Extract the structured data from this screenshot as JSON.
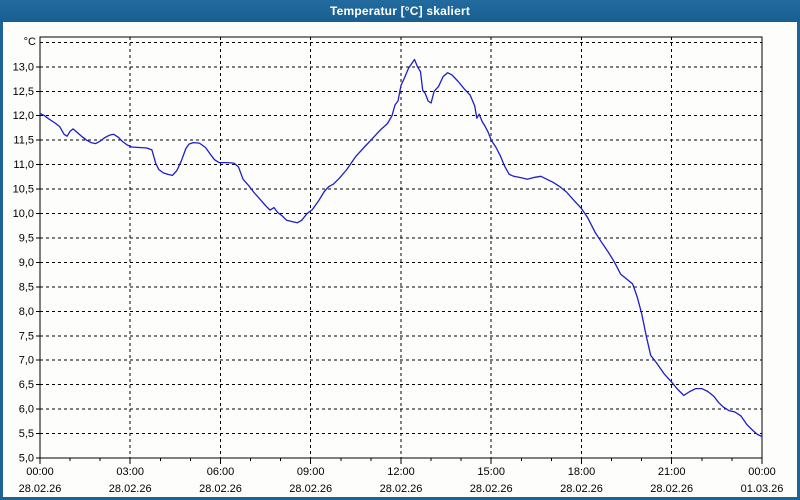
{
  "window": {
    "title": "Temperatur [°C] skaliert"
  },
  "colors": {
    "titlebar": "#1c6496",
    "window_frame": "#1c6496",
    "title_text": "#ffffff",
    "plot_background": "#fdfefb",
    "grid": "#000000",
    "line": "#1e1ec8"
  },
  "chart_data": {
    "type": "line",
    "title": "Temperatur [°C] skaliert",
    "y_unit_label": "°C",
    "xlabel": "",
    "ylabel": "",
    "grid": "dashed",
    "x_min_hours": 0,
    "x_max_hours": 24,
    "y_axis_min": 5.0,
    "y_axis_max_labeled": 13.0,
    "y_gridline_max": 13.5,
    "y_tick_step": 0.5,
    "x_major_step_hours": 3,
    "x_minor_step_hours": 1,
    "y_ticks": [
      {
        "value": 13.0,
        "label": "13,0"
      },
      {
        "value": 12.5,
        "label": "12,5"
      },
      {
        "value": 12.0,
        "label": "12,0"
      },
      {
        "value": 11.5,
        "label": "11,5"
      },
      {
        "value": 11.0,
        "label": "11,0"
      },
      {
        "value": 10.5,
        "label": "10,5"
      },
      {
        "value": 10.0,
        "label": "10,0"
      },
      {
        "value": 9.5,
        "label": "9,5"
      },
      {
        "value": 9.0,
        "label": "9,0"
      },
      {
        "value": 8.5,
        "label": "8,5"
      },
      {
        "value": 8.0,
        "label": "8,0"
      },
      {
        "value": 7.5,
        "label": "7,5"
      },
      {
        "value": 7.0,
        "label": "7,0"
      },
      {
        "value": 6.5,
        "label": "6,5"
      },
      {
        "value": 6.0,
        "label": "6,0"
      },
      {
        "value": 5.5,
        "label": "5,5"
      },
      {
        "value": 5.0,
        "label": "5,0"
      }
    ],
    "x_ticks": [
      {
        "hours": 0,
        "time": "00:00",
        "date": "28.02.26"
      },
      {
        "hours": 3,
        "time": "03:00",
        "date": "28.02.26"
      },
      {
        "hours": 6,
        "time": "06:00",
        "date": "28.02.26"
      },
      {
        "hours": 9,
        "time": "09:00",
        "date": "28.02.26"
      },
      {
        "hours": 12,
        "time": "12:00",
        "date": "28.02.26"
      },
      {
        "hours": 15,
        "time": "15:00",
        "date": "28.02.26"
      },
      {
        "hours": 18,
        "time": "18:00",
        "date": "28.02.26"
      },
      {
        "hours": 21,
        "time": "21:00",
        "date": "28.02.26"
      },
      {
        "hours": 24,
        "time": "00:00",
        "date": "01.03.26"
      }
    ],
    "series": [
      {
        "name": "Temperatur",
        "color": "#1e1ec8",
        "points_hours_degC": [
          [
            0.0,
            12.05
          ],
          [
            0.15,
            12.0
          ],
          [
            0.3,
            11.93
          ],
          [
            0.5,
            11.85
          ],
          [
            0.65,
            11.78
          ],
          [
            0.8,
            11.62
          ],
          [
            0.9,
            11.58
          ],
          [
            1.0,
            11.68
          ],
          [
            1.1,
            11.73
          ],
          [
            1.25,
            11.65
          ],
          [
            1.4,
            11.57
          ],
          [
            1.55,
            11.5
          ],
          [
            1.7,
            11.45
          ],
          [
            1.85,
            11.43
          ],
          [
            2.0,
            11.48
          ],
          [
            2.15,
            11.55
          ],
          [
            2.3,
            11.6
          ],
          [
            2.45,
            11.62
          ],
          [
            2.6,
            11.56
          ],
          [
            2.75,
            11.47
          ],
          [
            2.9,
            11.4
          ],
          [
            3.05,
            11.36
          ],
          [
            3.3,
            11.35
          ],
          [
            3.55,
            11.34
          ],
          [
            3.72,
            11.3
          ],
          [
            3.85,
            11.02
          ],
          [
            3.95,
            10.9
          ],
          [
            4.1,
            10.83
          ],
          [
            4.25,
            10.8
          ],
          [
            4.4,
            10.78
          ],
          [
            4.55,
            10.88
          ],
          [
            4.7,
            11.08
          ],
          [
            4.85,
            11.33
          ],
          [
            4.95,
            11.42
          ],
          [
            5.1,
            11.45
          ],
          [
            5.3,
            11.44
          ],
          [
            5.5,
            11.35
          ],
          [
            5.65,
            11.22
          ],
          [
            5.8,
            11.1
          ],
          [
            5.95,
            11.04
          ],
          [
            6.2,
            11.04
          ],
          [
            6.45,
            11.03
          ],
          [
            6.6,
            10.95
          ],
          [
            6.75,
            10.7
          ],
          [
            6.95,
            10.56
          ],
          [
            7.1,
            10.44
          ],
          [
            7.3,
            10.3
          ],
          [
            7.5,
            10.16
          ],
          [
            7.65,
            10.07
          ],
          [
            7.78,
            10.12
          ],
          [
            7.9,
            10.02
          ],
          [
            8.05,
            9.95
          ],
          [
            8.2,
            9.86
          ],
          [
            8.4,
            9.83
          ],
          [
            8.55,
            9.81
          ],
          [
            8.7,
            9.86
          ],
          [
            8.88,
            10.0
          ],
          [
            9.05,
            10.08
          ],
          [
            9.25,
            10.25
          ],
          [
            9.45,
            10.45
          ],
          [
            9.6,
            10.55
          ],
          [
            9.75,
            10.6
          ],
          [
            9.95,
            10.72
          ],
          [
            10.2,
            10.9
          ],
          [
            10.5,
            11.17
          ],
          [
            10.8,
            11.37
          ],
          [
            11.0,
            11.5
          ],
          [
            11.3,
            11.7
          ],
          [
            11.55,
            11.84
          ],
          [
            11.7,
            12.0
          ],
          [
            11.8,
            12.22
          ],
          [
            11.9,
            12.3
          ],
          [
            12.0,
            12.62
          ],
          [
            12.1,
            12.75
          ],
          [
            12.25,
            12.97
          ],
          [
            12.45,
            13.15
          ],
          [
            12.55,
            13.0
          ],
          [
            12.65,
            12.9
          ],
          [
            12.72,
            12.52
          ],
          [
            12.8,
            12.46
          ],
          [
            12.9,
            12.3
          ],
          [
            13.0,
            12.26
          ],
          [
            13.1,
            12.5
          ],
          [
            13.25,
            12.6
          ],
          [
            13.4,
            12.8
          ],
          [
            13.55,
            12.88
          ],
          [
            13.7,
            12.83
          ],
          [
            13.9,
            12.7
          ],
          [
            14.1,
            12.55
          ],
          [
            14.3,
            12.42
          ],
          [
            14.45,
            12.2
          ],
          [
            14.52,
            11.95
          ],
          [
            14.6,
            12.03
          ],
          [
            14.7,
            11.88
          ],
          [
            14.8,
            11.78
          ],
          [
            14.9,
            11.66
          ],
          [
            15.0,
            11.5
          ],
          [
            15.15,
            11.36
          ],
          [
            15.3,
            11.18
          ],
          [
            15.45,
            10.96
          ],
          [
            15.6,
            10.8
          ],
          [
            15.75,
            10.76
          ],
          [
            16.0,
            10.73
          ],
          [
            16.2,
            10.7
          ],
          [
            16.45,
            10.74
          ],
          [
            16.65,
            10.76
          ],
          [
            16.85,
            10.7
          ],
          [
            17.05,
            10.64
          ],
          [
            17.3,
            10.54
          ],
          [
            17.5,
            10.44
          ],
          [
            17.7,
            10.3
          ],
          [
            17.85,
            10.2
          ],
          [
            18.0,
            10.1
          ],
          [
            18.2,
            9.92
          ],
          [
            18.45,
            9.62
          ],
          [
            18.7,
            9.38
          ],
          [
            18.9,
            9.2
          ],
          [
            19.1,
            9.0
          ],
          [
            19.3,
            8.76
          ],
          [
            19.5,
            8.66
          ],
          [
            19.7,
            8.56
          ],
          [
            19.85,
            8.3
          ],
          [
            20.0,
            7.95
          ],
          [
            20.15,
            7.5
          ],
          [
            20.3,
            7.1
          ],
          [
            20.5,
            6.94
          ],
          [
            20.75,
            6.72
          ],
          [
            21.0,
            6.55
          ],
          [
            21.2,
            6.4
          ],
          [
            21.4,
            6.28
          ],
          [
            21.6,
            6.36
          ],
          [
            21.8,
            6.42
          ],
          [
            22.0,
            6.42
          ],
          [
            22.2,
            6.36
          ],
          [
            22.4,
            6.26
          ],
          [
            22.55,
            6.14
          ],
          [
            22.7,
            6.05
          ],
          [
            22.9,
            5.97
          ],
          [
            23.1,
            5.94
          ],
          [
            23.3,
            5.86
          ],
          [
            23.5,
            5.68
          ],
          [
            23.7,
            5.56
          ],
          [
            23.85,
            5.48
          ],
          [
            24.0,
            5.44
          ]
        ]
      }
    ]
  }
}
